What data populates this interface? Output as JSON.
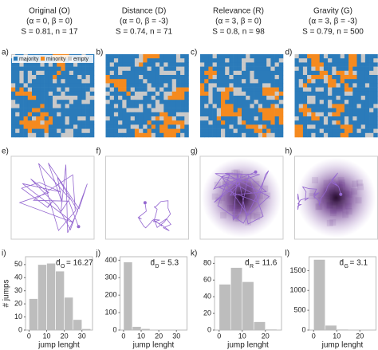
{
  "legend": {
    "items": [
      "majority",
      "minority",
      "empty"
    ],
    "colors": [
      "#2b7bba",
      "#f58a1f",
      "#c9c9c9"
    ]
  },
  "chart_data": [
    {
      "type": "histogram",
      "title": [
        "Original (O)",
        "(α = 0, β = 0)",
        "S = 0.81, n = 17"
      ],
      "panel_labels": [
        "a)",
        "e)",
        "i)"
      ],
      "density": false,
      "bins": [
        0,
        5,
        10,
        15,
        20,
        25,
        30,
        35
      ],
      "values": [
        24,
        50,
        51,
        45,
        25,
        8,
        1
      ],
      "color": "#bdbdbd",
      "xlim": [
        -2,
        36
      ],
      "ylim": [
        0,
        56
      ],
      "xticks": [
        0,
        10,
        20,
        30
      ],
      "yticks": [
        0,
        10,
        20,
        30,
        40,
        50
      ],
      "xlabel": "jump lenght",
      "ylabel": "# jumps",
      "annotation": {
        "symbol": "d̄",
        "sub": "O",
        "text": "= 16.27"
      }
    },
    {
      "type": "histogram",
      "title": [
        "Distance (D)",
        "(α = 0, β = -3)",
        "S = 0.74, n = 71"
      ],
      "panel_labels": [
        "b)",
        "f)",
        "j)"
      ],
      "density": false,
      "bins": [
        0,
        5,
        10,
        15,
        20
      ],
      "values": [
        390,
        20,
        8,
        2
      ],
      "color": "#bdbdbd",
      "xlim": [
        -2,
        36
      ],
      "ylim": [
        0,
        420
      ],
      "xticks": [
        0,
        10,
        20,
        30
      ],
      "yticks": [
        0,
        100,
        200,
        300,
        400
      ],
      "xlabel": "jump lenght",
      "annotation": {
        "symbol": "d̄",
        "sub": "D",
        "text": "= 5.3"
      }
    },
    {
      "type": "histogram",
      "title": [
        "Relevance (R)",
        "(α = 3, β = 0)",
        "S = 0.8, n = 98"
      ],
      "panel_labels": [
        "c)",
        "g)",
        "k)"
      ],
      "density": true,
      "bins": [
        0,
        5,
        10,
        15,
        20,
        25
      ],
      "values": [
        55,
        75,
        58,
        10,
        1
      ],
      "color": "#bdbdbd",
      "xlim": [
        -2,
        27
      ],
      "ylim": [
        0,
        88
      ],
      "xticks": [
        0,
        10,
        20
      ],
      "yticks": [
        0,
        20,
        40,
        60,
        80
      ],
      "xlabel": "jump lenght",
      "annotation": {
        "symbol": "d̄",
        "sub": "R",
        "text": "= 11.6"
      }
    },
    {
      "type": "histogram",
      "title": [
        "Gravity (G)",
        "(α = 3, β = -3)",
        "S = 0.79, n = 500"
      ],
      "panel_labels": [
        "d)",
        "h)",
        "l)"
      ],
      "density": true,
      "bins": [
        0,
        5,
        10,
        15
      ],
      "values": [
        1780,
        120,
        20
      ],
      "color": "#bdbdbd",
      "xlim": [
        -2,
        27
      ],
      "ylim": [
        0,
        1850
      ],
      "xticks": [
        0,
        10,
        20
      ],
      "yticks": [
        0,
        500,
        1000,
        1500
      ],
      "xlabel": "jump lenght",
      "annotation": {
        "symbol": "d̄",
        "sub": "G",
        "text": "= 3.1"
      }
    }
  ]
}
